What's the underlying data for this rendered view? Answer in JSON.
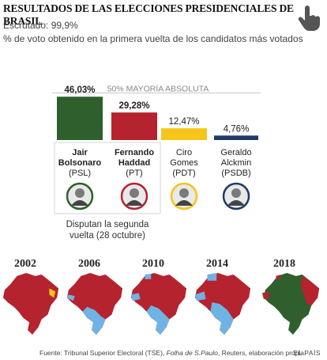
{
  "title": "RESULTADOS DE LAS ELECCIONES PRESIDENCIALES DE BRASIL",
  "scrutiny": "Escrutado: 99,9%",
  "subtitle": "% de voto obtenido en la primera vuelta de los candidatos más votados",
  "interaction_icon": "hand-pointer-icon",
  "colors": {
    "bolsonaro": "#2e5f2c",
    "haddad": "#b5232e",
    "gomes": "#f5c518",
    "alckmin": "#1f3a66",
    "other": "#6fb3e4",
    "runoff_border": "#d6d6d6",
    "majority_line": "#c9c9c9"
  },
  "chart_data": {
    "type": "bar",
    "majority_label": "50% MAYORÍA ABSOLUTA",
    "majority_value": 50,
    "ylim": [
      0,
      50
    ],
    "categories": [
      [
        "Jair",
        "Bolsonaro",
        "(PSL)"
      ],
      [
        "Fernando",
        "Haddad",
        "(PT)"
      ],
      [
        "Ciro",
        "Gomes",
        "(PDT)"
      ],
      [
        "Geraldo",
        "Alckmin",
        "(PSDB)"
      ]
    ],
    "values": [
      46.03,
      29.28,
      12.47,
      4.76
    ],
    "value_labels": [
      "46,03%",
      "29,28%",
      "12,47%",
      "4,76%"
    ],
    "bold_names": [
      true,
      true,
      false,
      false
    ],
    "runoff_note": [
      "Disputan la segunda",
      "vuelta (28 octubre)"
    ]
  },
  "maps": {
    "years": [
      "2002",
      "2006",
      "2010",
      "2014",
      "2018"
    ]
  },
  "footer": {
    "source_prefix": "Fuente: Tribunal Superior Electoral (TSE), ",
    "source_italic": "Folha de S.Paulo",
    "source_suffix": ", Reuters, elaboración propia.",
    "brand": "EL PAÍS"
  }
}
